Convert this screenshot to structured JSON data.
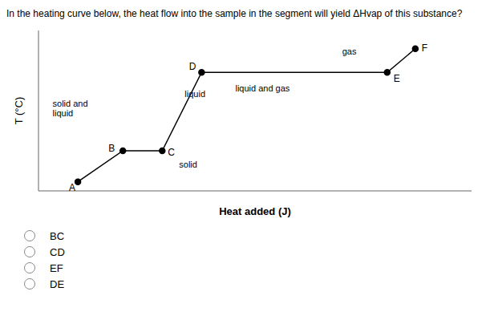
{
  "chart_data": {
    "type": "line",
    "title": "In the heating curve below, the heat flow into the sample in the segment will yield ΔHvap of this substance?",
    "x_label": "Heat added (J)",
    "y_label": "T (°C)",
    "x": [
      1.0,
      1.8,
      2.5,
      3.2,
      6.5,
      7.0
    ],
    "values": [
      0.5,
      2.2,
      2.2,
      6.5,
      6.5,
      7.8
    ],
    "color": "#000000",
    "marker": "circle",
    "xlim": [
      0.3,
      8.0
    ],
    "ylim": [
      0.0,
      8.8
    ],
    "tick_labels": false,
    "grid": false,
    "annotations": [
      {
        "text": "A",
        "x": 1.0,
        "y": 0.5
      },
      {
        "text": "B",
        "x": 1.8,
        "y": 2.2
      },
      {
        "text": "C",
        "x": 2.5,
        "y": 2.2
      },
      {
        "text": "D",
        "x": 3.2,
        "y": 6.5
      },
      {
        "text": "E",
        "x": 6.5,
        "y": 6.5
      },
      {
        "text": "F",
        "x": 7.0,
        "y": 7.8
      },
      {
        "text": "solid",
        "x": 2.8,
        "y": 1.4
      },
      {
        "text": "solid and\nliquid",
        "x": 0.55,
        "y": 4.5
      },
      {
        "text": "liquid",
        "x": 2.9,
        "y": 5.3
      },
      {
        "text": "liquid and gas",
        "x": 3.8,
        "y": 5.6
      },
      {
        "text": "gas",
        "x": 5.7,
        "y": 7.6
      }
    ],
    "options": [
      "BC",
      "CD",
      "EF",
      "DE"
    ]
  }
}
